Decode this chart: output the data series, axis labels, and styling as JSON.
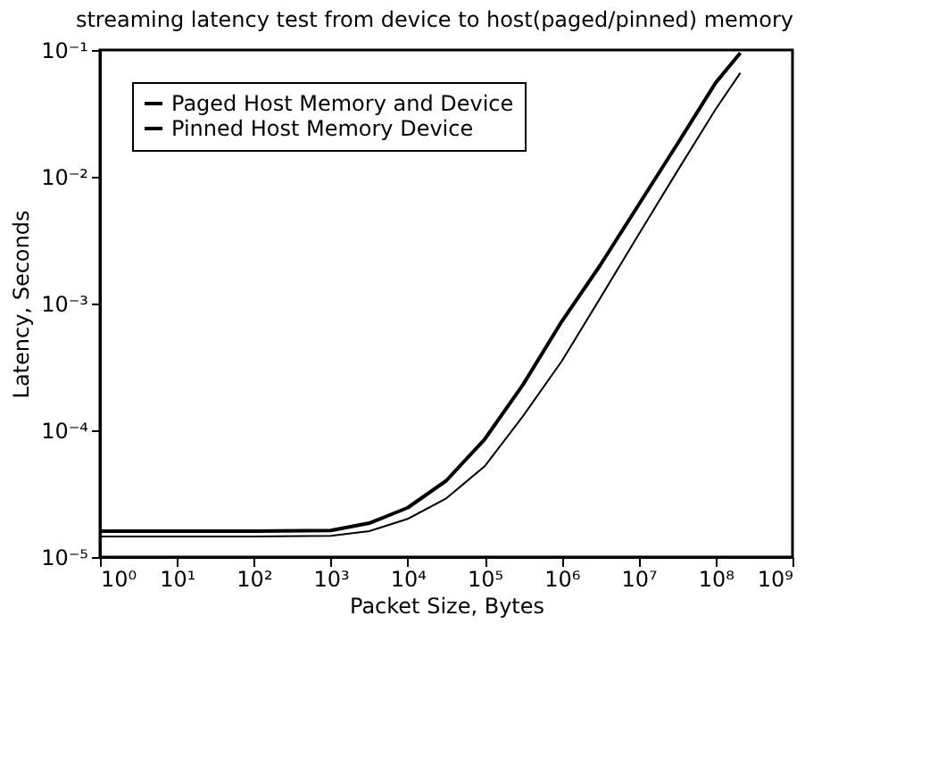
{
  "chart_data": {
    "type": "line",
    "title": "streaming latency test from device to host(paged/pinned) memory",
    "xlabel": "Packet Size, Bytes",
    "ylabel": "Latency, Seconds",
    "log": "xy",
    "legend": "top left",
    "grid": false,
    "marker": "none",
    "line_style": "solid",
    "xlim": [
      1,
      1000000000
    ],
    "ylim": [
      1e-05,
      0.1
    ],
    "xticks": [
      {
        "value": 1,
        "label": "10⁰"
      },
      {
        "value": 10,
        "label": "10¹"
      },
      {
        "value": 100,
        "label": "10²"
      },
      {
        "value": 1000,
        "label": "10³"
      },
      {
        "value": 10000,
        "label": "10⁴"
      },
      {
        "value": 100000,
        "label": "10⁵"
      },
      {
        "value": 1000000,
        "label": "10⁶"
      },
      {
        "value": 10000000,
        "label": "10⁷"
      },
      {
        "value": 100000000,
        "label": "10⁸"
      },
      {
        "value": 1000000000,
        "label": "10⁹"
      }
    ],
    "yticks": [
      {
        "value": 1e-05,
        "label": "10⁻⁵"
      },
      {
        "value": 0.0001,
        "label": "10⁻⁴"
      },
      {
        "value": 0.001,
        "label": "10⁻³"
      },
      {
        "value": 0.01,
        "label": "10⁻²"
      },
      {
        "value": 0.1,
        "label": "10⁻¹"
      }
    ],
    "x": [
      1,
      10,
      100,
      1000,
      3162,
      10000,
      31623,
      100000,
      316228,
      1000000,
      3162278,
      10000000,
      31622777,
      100000000,
      210000000
    ],
    "series": [
      {
        "name": "Paged Host Memory and Device",
        "color": "#000000",
        "values": [
          1.6e-05,
          1.6e-05,
          1.6e-05,
          1.62e-05,
          1.85e-05,
          2.45e-05,
          4e-05,
          8.5e-05,
          0.00023,
          0.00072,
          0.002,
          0.006,
          0.018,
          0.055,
          0.095
        ]
      },
      {
        "name": "Pinned Host Memory Device",
        "color": "#000000",
        "values": [
          1.45e-05,
          1.45e-05,
          1.45e-05,
          1.47e-05,
          1.6e-05,
          2e-05,
          2.9e-05,
          5.2e-05,
          0.00013,
          0.00035,
          0.0011,
          0.0035,
          0.011,
          0.034,
          0.066
        ]
      }
    ]
  }
}
